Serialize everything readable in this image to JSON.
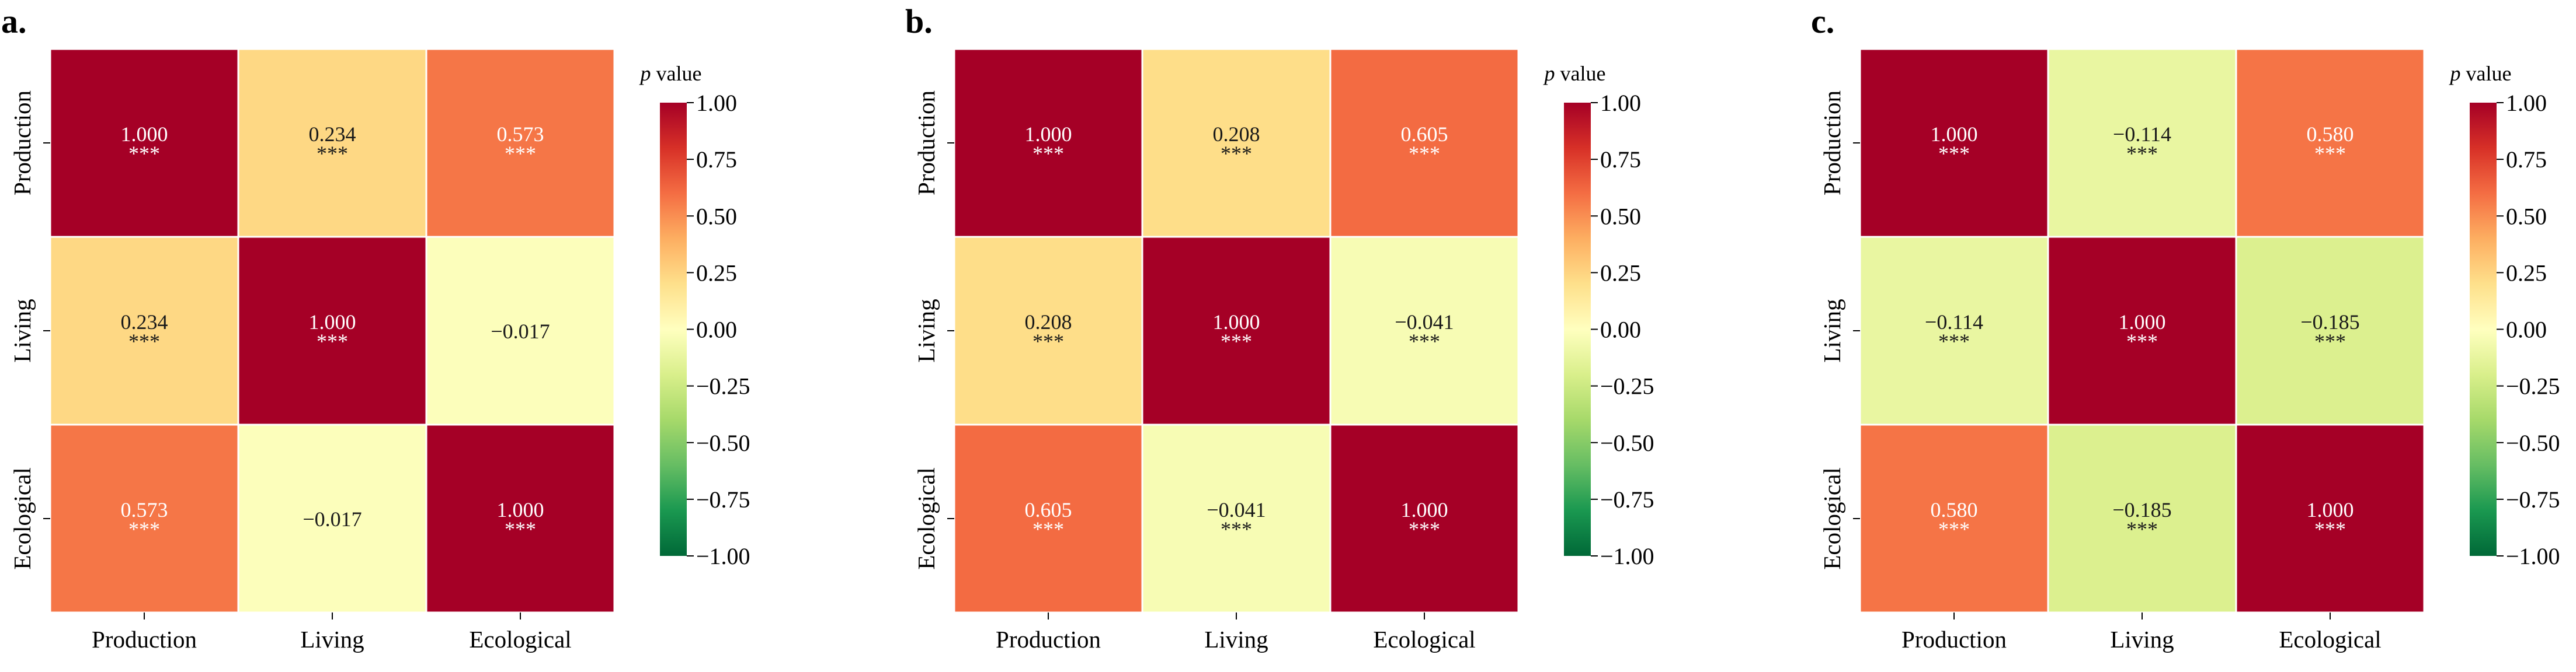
{
  "chart_data": [
    {
      "type": "heatmap",
      "panel_label": "a.",
      "labels": [
        "Production",
        "Living",
        "Ecological"
      ],
      "matrix": [
        [
          1.0,
          0.234,
          0.573
        ],
        [
          0.234,
          1.0,
          -0.017
        ],
        [
          0.573,
          -0.017,
          1.0
        ]
      ],
      "value_text": [
        [
          "1.000",
          "0.234",
          "0.573"
        ],
        [
          "0.234",
          "1.000",
          "−0.017"
        ],
        [
          "0.573",
          "−0.017",
          "1.000"
        ]
      ],
      "significance": [
        [
          "***",
          "***",
          "***"
        ],
        [
          "***",
          "***",
          ""
        ],
        [
          "***",
          "",
          "***"
        ]
      ],
      "colorbar": {
        "title_italic": "p",
        "title_rest": " value",
        "ticks": [
          1.0,
          0.75,
          0.5,
          0.25,
          0.0,
          -0.25,
          -0.5,
          -0.75,
          -1.0
        ],
        "tick_labels": [
          "1.00",
          "0.75",
          "0.50",
          "0.25",
          "0.00",
          "−0.25",
          "−0.50",
          "−0.75",
          "−1.00"
        ],
        "vmin": -1.0,
        "vmax": 1.0,
        "colormap": "RdYlGn_r"
      }
    },
    {
      "type": "heatmap",
      "panel_label": "b.",
      "labels": [
        "Production",
        "Living",
        "Ecological"
      ],
      "matrix": [
        [
          1.0,
          0.208,
          0.605
        ],
        [
          0.208,
          1.0,
          -0.041
        ],
        [
          0.605,
          -0.041,
          1.0
        ]
      ],
      "value_text": [
        [
          "1.000",
          "0.208",
          "0.605"
        ],
        [
          "0.208",
          "1.000",
          "−0.041"
        ],
        [
          "0.605",
          "−0.041",
          "1.000"
        ]
      ],
      "significance": [
        [
          "***",
          "***",
          "***"
        ],
        [
          "***",
          "***",
          "***"
        ],
        [
          "***",
          "***",
          "***"
        ]
      ],
      "colorbar": {
        "title_italic": "p",
        "title_rest": " value",
        "ticks": [
          1.0,
          0.75,
          0.5,
          0.25,
          0.0,
          -0.25,
          -0.5,
          -0.75,
          -1.0
        ],
        "tick_labels": [
          "1.00",
          "0.75",
          "0.50",
          "0.25",
          "0.00",
          "−0.25",
          "−0.50",
          "−0.75",
          "−1.00"
        ],
        "vmin": -1.0,
        "vmax": 1.0,
        "colormap": "RdYlGn_r"
      }
    },
    {
      "type": "heatmap",
      "panel_label": "c.",
      "labels": [
        "Production",
        "Living",
        "Ecological"
      ],
      "matrix": [
        [
          1.0,
          -0.114,
          0.58
        ],
        [
          -0.114,
          1.0,
          -0.185
        ],
        [
          0.58,
          -0.185,
          1.0
        ]
      ],
      "value_text": [
        [
          "1.000",
          "−0.114",
          "0.580"
        ],
        [
          "−0.114",
          "1.000",
          "−0.185"
        ],
        [
          "0.580",
          "−0.185",
          "1.000"
        ]
      ],
      "significance": [
        [
          "***",
          "***",
          "***"
        ],
        [
          "***",
          "***",
          "***"
        ],
        [
          "***",
          "***",
          "***"
        ]
      ],
      "colorbar": {
        "title_italic": "p",
        "title_rest": " value",
        "ticks": [
          1.0,
          0.75,
          0.5,
          0.25,
          0.0,
          -0.25,
          -0.5,
          -0.75,
          -1.0
        ],
        "tick_labels": [
          "1.00",
          "0.75",
          "0.50",
          "0.25",
          "0.00",
          "−0.25",
          "−0.50",
          "−0.75",
          "−1.00"
        ],
        "vmin": -1.0,
        "vmax": 1.0,
        "colormap": "RdYlGn_r"
      }
    }
  ]
}
